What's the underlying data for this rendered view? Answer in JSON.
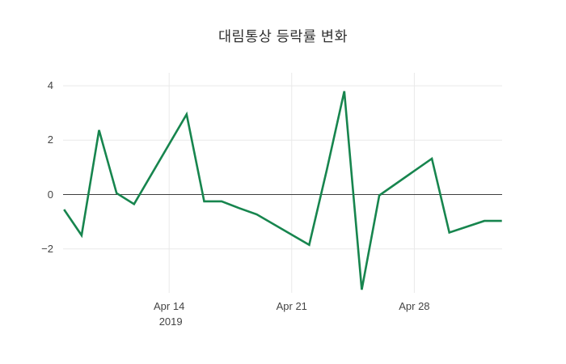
{
  "title": "대림통상 등락률 변화",
  "colors": {
    "line": "#17854e",
    "grid": "#e9e9e9",
    "zero_line": "#3f3f3f",
    "text": "#444444",
    "background": "#ffffff"
  },
  "chart_data": {
    "type": "line",
    "title": "대림통상 등락률 변화",
    "xlabel": "",
    "ylabel": "",
    "legend": false,
    "grid": true,
    "x_dates": [
      "Apr 8",
      "Apr 9",
      "Apr 10",
      "Apr 11",
      "Apr 12",
      "Apr 15",
      "Apr 16",
      "Apr 17",
      "Apr 18",
      "Apr 19",
      "Apr 22",
      "Apr 23",
      "Apr 24",
      "Apr 25",
      "Apr 26",
      "Apr 29",
      "Apr 30",
      "May 2",
      "May 3"
    ],
    "day_offsets": [
      0,
      1,
      2,
      3,
      4,
      7,
      8,
      9,
      10,
      11,
      14,
      15,
      16,
      17,
      18,
      21,
      22,
      24,
      25
    ],
    "values": [
      -0.55,
      -1.5,
      2.37,
      0.05,
      -0.35,
      2.95,
      -0.25,
      -0.25,
      -0.5,
      -0.73,
      -1.85,
      0.9,
      3.8,
      -3.5,
      -0.03,
      1.32,
      -1.4,
      -0.97,
      -0.97
    ],
    "series_name": "등락률",
    "ylim": [
      -3.65,
      4.48
    ],
    "yticks": [
      {
        "value": 4,
        "label": "4"
      },
      {
        "value": 2,
        "label": "2"
      },
      {
        "value": 0,
        "label": "0"
      },
      {
        "value": -2,
        "label": "−2"
      }
    ],
    "xticks": [
      {
        "day_offset": 6,
        "label": "Apr 14",
        "sublabel": "2019"
      },
      {
        "day_offset": 13,
        "label": "Apr 21",
        "sublabel": ""
      },
      {
        "day_offset": 20,
        "label": "Apr 28",
        "sublabel": ""
      }
    ]
  }
}
